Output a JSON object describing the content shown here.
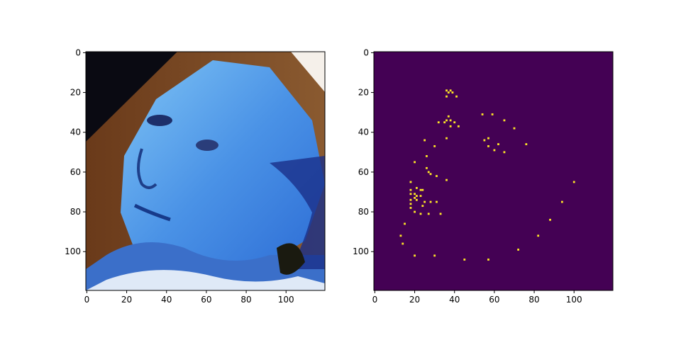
{
  "chart_data": [
    {
      "type": "image",
      "title": "",
      "xlabel": "",
      "ylabel": "",
      "xlim": [
        0,
        120
      ],
      "ylim": [
        120,
        0
      ],
      "xticks": [
        0,
        20,
        40,
        60,
        80,
        100
      ],
      "yticks": [
        0,
        20,
        40,
        60,
        80,
        100
      ],
      "content": "photo"
    },
    {
      "type": "heatmap",
      "title": "",
      "xlabel": "",
      "ylabel": "",
      "xlim": [
        0,
        120
      ],
      "ylim": [
        120,
        0
      ],
      "xticks": [
        0,
        20,
        40,
        60,
        80,
        100
      ],
      "yticks": [
        0,
        20,
        40,
        60,
        80,
        100
      ],
      "colormap": {
        "background": "#440154",
        "point": "#fde725"
      },
      "points": [
        [
          36,
          19
        ],
        [
          38,
          19
        ],
        [
          37,
          20
        ],
        [
          39,
          20
        ],
        [
          36,
          22
        ],
        [
          41,
          22
        ],
        [
          37,
          32
        ],
        [
          36,
          34
        ],
        [
          38,
          34
        ],
        [
          35,
          35
        ],
        [
          40,
          35
        ],
        [
          32,
          35
        ],
        [
          38,
          37
        ],
        [
          42,
          37
        ],
        [
          54,
          31
        ],
        [
          59,
          31
        ],
        [
          65,
          34
        ],
        [
          70,
          38
        ],
        [
          25,
          44
        ],
        [
          30,
          47
        ],
        [
          36,
          43
        ],
        [
          55,
          44
        ],
        [
          57,
          43
        ],
        [
          57,
          47
        ],
        [
          60,
          49
        ],
        [
          62,
          46
        ],
        [
          65,
          50
        ],
        [
          76,
          46
        ],
        [
          26,
          52
        ],
        [
          20,
          55
        ],
        [
          26,
          58
        ],
        [
          27,
          60
        ],
        [
          28,
          61
        ],
        [
          31,
          62
        ],
        [
          36,
          64
        ],
        [
          18,
          65
        ],
        [
          100,
          65
        ],
        [
          21,
          68
        ],
        [
          18,
          69
        ],
        [
          23,
          69
        ],
        [
          24,
          69
        ],
        [
          18,
          71
        ],
        [
          20,
          71
        ],
        [
          21,
          72
        ],
        [
          23,
          72
        ],
        [
          20,
          73
        ],
        [
          18,
          74
        ],
        [
          21,
          74
        ],
        [
          25,
          75
        ],
        [
          28,
          75
        ],
        [
          31,
          75
        ],
        [
          94,
          75
        ],
        [
          18,
          76
        ],
        [
          24,
          77
        ],
        [
          18,
          78
        ],
        [
          20,
          80
        ],
        [
          23,
          81
        ],
        [
          27,
          81
        ],
        [
          33,
          81
        ],
        [
          88,
          84
        ],
        [
          15,
          86
        ],
        [
          82,
          92
        ],
        [
          13,
          92
        ],
        [
          14,
          96
        ],
        [
          72,
          99
        ],
        [
          20,
          102
        ],
        [
          30,
          102
        ],
        [
          45,
          104
        ],
        [
          57,
          104
        ]
      ]
    }
  ]
}
